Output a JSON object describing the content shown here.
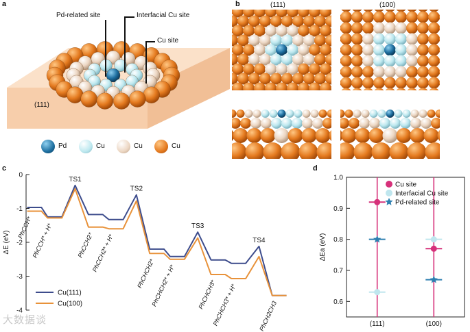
{
  "panels": {
    "a": "a",
    "b": "b",
    "c": "c",
    "d": "d"
  },
  "panel_a": {
    "labels": {
      "pd_site": "Pd-related site",
      "interfacial_site": "Interfacial Cu site",
      "cu_site": "Cu site",
      "facet": "(111)"
    },
    "legend": [
      {
        "label": "Pd",
        "color": "#1e6fa0"
      },
      {
        "label": "Cu",
        "color": "#bde8ef"
      },
      {
        "label": "Cu",
        "color": "#ecd6c2"
      },
      {
        "label": "Cu",
        "color": "#e07a20"
      }
    ]
  },
  "panel_b": {
    "columns": [
      "(111)",
      "(100)"
    ]
  },
  "chart_data": [
    {
      "type": "line",
      "panel": "c",
      "title": "",
      "xlabel": "",
      "ylabel": "ΔE (eV)",
      "ylim": [
        -4,
        0
      ],
      "yticks": [
        0,
        -1,
        -2,
        -3,
        -4
      ],
      "states": [
        "PhCCH*",
        "PhCCH* + H*",
        "TS1",
        "PhCCH2*",
        "PhCCH2* + H*",
        "TS2",
        "PhCHCH2*",
        "PhCHCH2* + H*",
        "TS3",
        "PhCHCH3*",
        "PhCHCH3* + H*",
        "TS4",
        "PhCH2CH3"
      ],
      "state_labels": [
        "PhCCH*",
        "PhCCH* + H*",
        "PhCCH2*",
        "PhCCH2* + H*",
        "PhCHCH2*",
        "PhCHCH2* + H*",
        "PhCHCH3*",
        "PhCHCH3* + H*",
        "PhCH2CH3"
      ],
      "ts_labels": [
        "TS1",
        "TS2",
        "TS3",
        "TS4"
      ],
      "series": [
        {
          "name": "Cu(111)",
          "color": "#3d4c8c",
          "values": [
            -0.97,
            -1.25,
            -0.32,
            -1.18,
            -1.33,
            -0.6,
            -2.2,
            -2.42,
            -1.7,
            -2.52,
            -2.62,
            -2.12,
            -3.57
          ]
        },
        {
          "name": "Cu(100)",
          "color": "#e8923a",
          "values": [
            -1.08,
            -1.28,
            -0.42,
            -1.55,
            -1.6,
            -0.78,
            -2.33,
            -2.5,
            -1.87,
            -2.95,
            -3.07,
            -2.42,
            -3.57
          ]
        }
      ]
    },
    {
      "type": "scatter",
      "panel": "d",
      "title": "",
      "xlabel": "",
      "ylabel": "ΔEa (eV)",
      "ylim": [
        0.55,
        1.0
      ],
      "yticks": [
        1.0,
        0.9,
        0.8,
        0.7,
        0.6
      ],
      "categories": [
        "(111)",
        "(100)"
      ],
      "series": [
        {
          "name": "Cu site",
          "color": "#d6317a",
          "marker": "circle",
          "values": [
            0.92,
            0.77
          ]
        },
        {
          "name": "Interfacial Cu site",
          "color": "#bfe6ee",
          "marker": "circle",
          "values": [
            0.63,
            0.8
          ]
        },
        {
          "name": "Pd-related site",
          "color": "#2e7fb0",
          "marker": "star",
          "values": [
            0.8,
            0.67
          ]
        }
      ],
      "vertical_line_color": "#d6317a"
    }
  ],
  "watermark": "大数据谈"
}
